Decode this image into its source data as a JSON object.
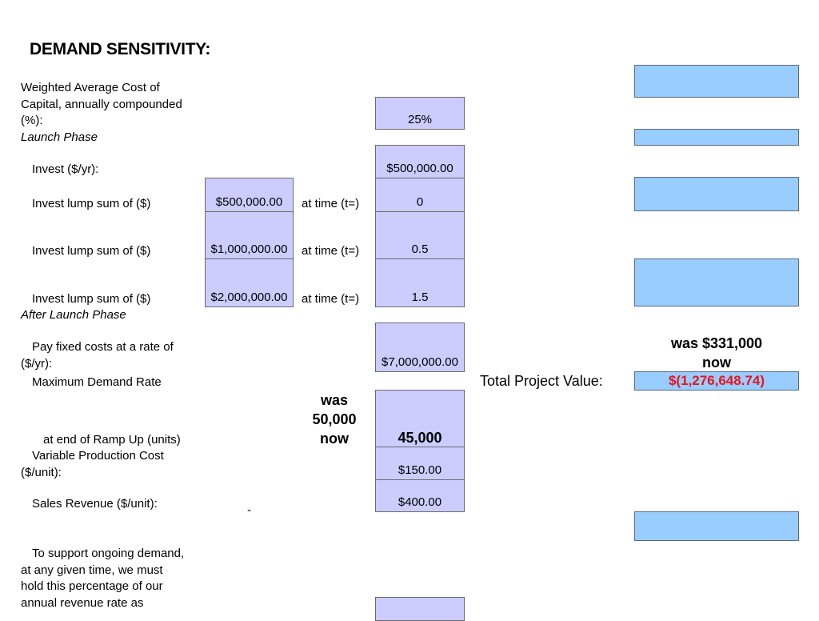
{
  "title": "DEMAND SENSITIVITY:",
  "wacc": {
    "label_lines": [
      "Weighted Average Cost of",
      "Capital, annually compounded",
      "(%):"
    ],
    "value": "25%"
  },
  "launch_phase": {
    "heading": "Launch Phase",
    "invest_rate": {
      "label": "Invest ($/yr):",
      "value": "$500,000.00"
    },
    "lump_sums": [
      {
        "label": "Invest lump sum of ($)",
        "amount": "$500,000.00",
        "time_label": "at time (t=)",
        "time": "0"
      },
      {
        "label": "Invest lump sum of ($)",
        "amount": "$1,000,000.00",
        "time_label": "at time (t=)",
        "time": "0.5"
      },
      {
        "label": "Invest lump sum of ($)",
        "amount": "$2,000,000.00",
        "time_label": "at time (t=)",
        "time": "1.5"
      }
    ]
  },
  "after_launch": {
    "heading": "After Launch Phase",
    "fixed_costs": {
      "label_lines": [
        "Pay fixed costs at a rate of",
        "($/yr):"
      ],
      "value": "$7,000,000.00"
    },
    "max_demand": {
      "label_top": "Maximum Demand Rate",
      "label_bottom": "at end of Ramp Up (units)",
      "note_lines": [
        "was",
        "50,000",
        "now"
      ],
      "value": "45,000"
    },
    "variable_cost": {
      "label_lines": [
        "Variable Production Cost",
        "($/unit):"
      ],
      "value": "$150.00"
    },
    "sales_revenue": {
      "label": "Sales Revenue ($/unit):",
      "dash": "-",
      "value": "$400.00"
    },
    "ongoing_demand": {
      "label_lines": [
        "To support ongoing demand,",
        "at any given time, we must",
        "hold  this percentage  of our",
        "annual revenue rate as"
      ],
      "value": ""
    }
  },
  "total_project": {
    "label": "Total Project Value:",
    "note_lines": [
      "was $331,000",
      "now"
    ],
    "value": "$(1,276,648.74)"
  },
  "colors": {
    "input_cell": "#ccccff",
    "output_cell": "#99ccff",
    "negative_value": "#e8141c"
  }
}
